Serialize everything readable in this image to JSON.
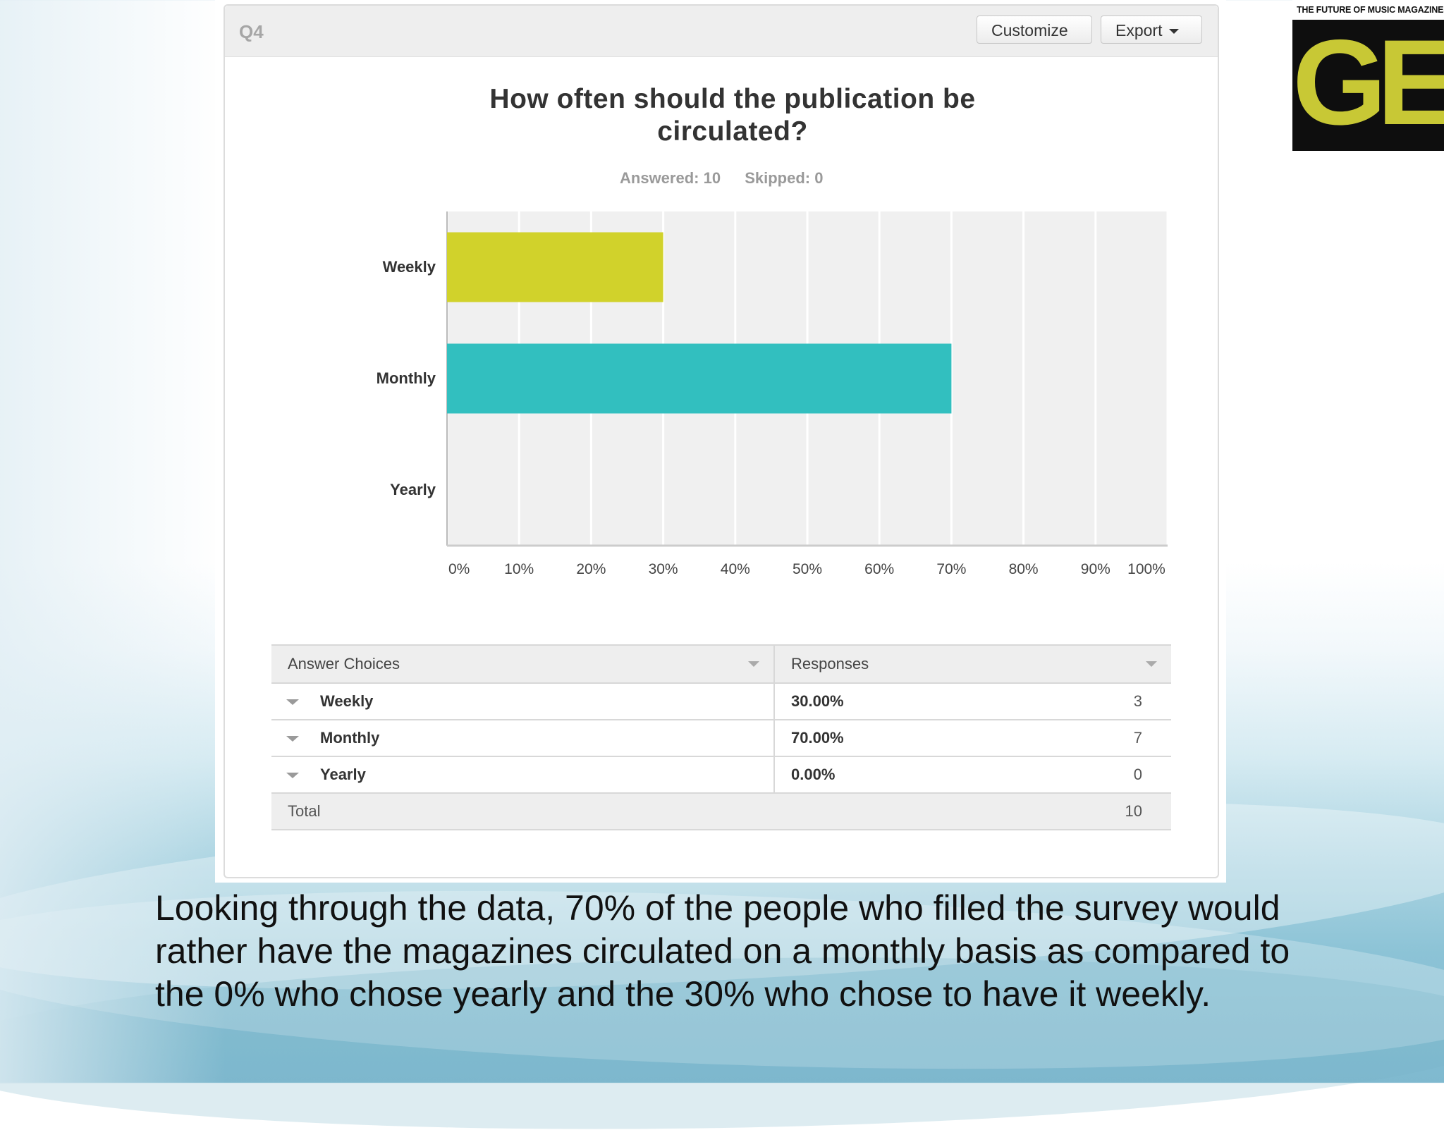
{
  "card": {
    "question_number": "Q4",
    "customize_label": "Customize",
    "export_label": "Export",
    "title": "How often should the publication be circulated?",
    "answered": "Answered: 10",
    "skipped": "Skipped: 0"
  },
  "chart_data": {
    "type": "bar",
    "orientation": "horizontal",
    "categories": [
      "Weekly",
      "Monthly",
      "Yearly"
    ],
    "values": [
      30,
      70,
      0
    ],
    "colors": [
      "#d1d22b",
      "#32bfbf",
      "#cccccc"
    ],
    "xlim": [
      0,
      100
    ],
    "x_ticks": [
      "0%",
      "10%",
      "20%",
      "30%",
      "40%",
      "50%",
      "60%",
      "70%",
      "80%",
      "90%",
      "100%"
    ],
    "grid": true
  },
  "table": {
    "headers": [
      "Answer Choices",
      "Responses"
    ],
    "rows": [
      {
        "choice": "Weekly",
        "percent": "30.00%",
        "count": "3"
      },
      {
        "choice": "Monthly",
        "percent": "70.00%",
        "count": "7"
      },
      {
        "choice": "Yearly",
        "percent": "0.00%",
        "count": "0"
      }
    ],
    "total_label": "Total",
    "total_value": "10"
  },
  "logo": {
    "tagline": "THE FUTURE OF MUSIC MAGAZINES",
    "letters": "GE"
  },
  "caption": "Looking through the data, 70% of the people who filled the survey would rather have the magazines circulated on a monthly basis as compared to the 0% who chose yearly and the 30% who chose to have it weekly."
}
